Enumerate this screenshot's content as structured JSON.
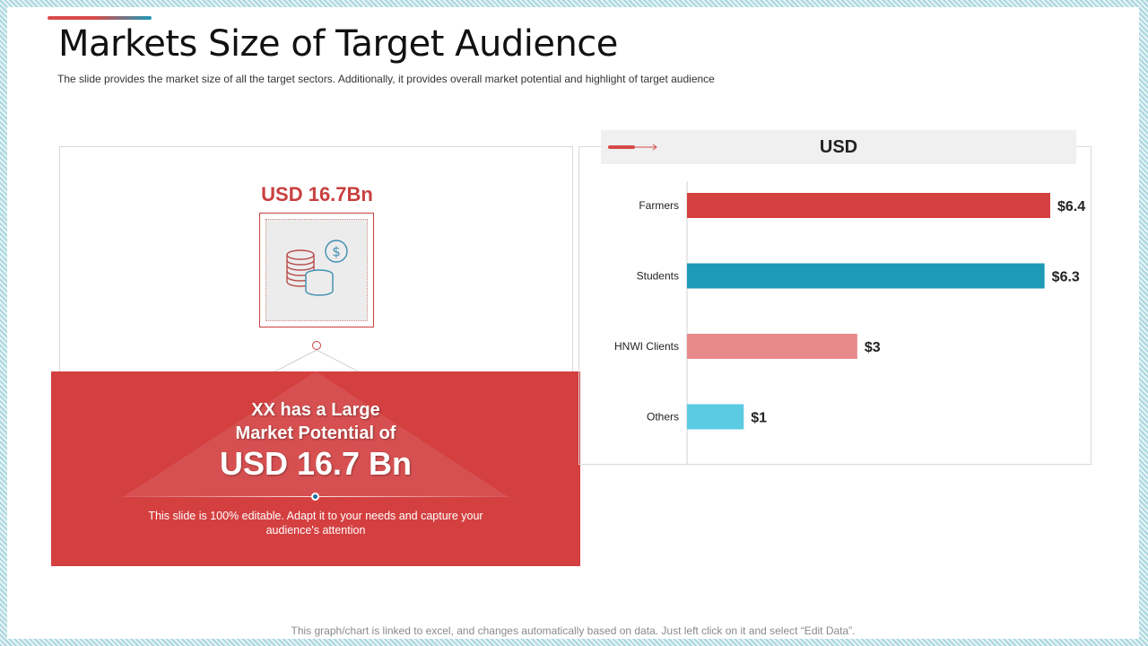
{
  "title": "Markets Size of Target Audience",
  "subtitle": "The slide provides  the market size of all the target sectors. Additionally, it provides  overall  market potential and highlight of target audience",
  "left_panel": {
    "amount_label": "USD 16.7Bn",
    "icon": "coins-dollar-icon",
    "headline_line1": "XX has a Large",
    "headline_line2": "Market Potential of",
    "big_amount": "USD 16.7 Bn",
    "caption": "This slide is 100% editable. Adapt it to your needs and capture your audience's attention"
  },
  "colors": {
    "red": "#d43f40",
    "teal": "#1c9ab6",
    "light_red": "#e8898a",
    "light_teal": "#5bcbe3"
  },
  "chart_data": {
    "type": "bar",
    "orientation": "horizontal",
    "title": "USD",
    "categories": [
      "Farmers",
      "Students",
      "HNWI Clients",
      "Others"
    ],
    "values": [
      6.4,
      6.3,
      3,
      1
    ],
    "data_labels": [
      "$6.4",
      "$6.3",
      "$3",
      "$1"
    ],
    "bar_colors": [
      "#d43f40",
      "#1c9ab6",
      "#e8898a",
      "#5bcbe3"
    ],
    "xlim": [
      0,
      6.4
    ],
    "grid": false,
    "legend": "none"
  },
  "footer": "This graph/chart is linked to excel, and changes automatically based on data. Just left click on it and select “Edit Data”."
}
